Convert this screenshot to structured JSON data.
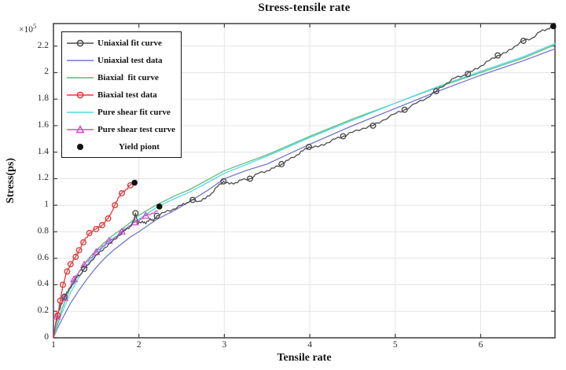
{
  "title": "Stress-tensile rate",
  "axes": {
    "x_label": "Tensile rate",
    "y_label": "Stress(ps)",
    "y_multiplier_base": "×10",
    "y_multiplier_exp": "5",
    "x_tick_labels": [
      "1",
      "2",
      "3",
      "4",
      "5",
      "6"
    ],
    "y_tick_labels": [
      "0",
      "0.2",
      "0.4",
      "0.6",
      "0.8",
      "1",
      "1.2",
      "1.4",
      "1.6",
      "1.8",
      "2",
      "2.2"
    ]
  },
  "legend": {
    "entries": [
      {
        "label": "Uniaxial fit curve",
        "color": "#4d4d4d",
        "marker": "circle",
        "line": true,
        "indent": false
      },
      {
        "label": "Uniaxial test data",
        "color": "#7577cf",
        "marker": "none",
        "line": true,
        "indent": false
      },
      {
        "label": "Biaxial  fit curve",
        "color": "#58bd7d",
        "marker": "none",
        "line": true,
        "indent": false
      },
      {
        "label": "Biaxial test data",
        "color": "#e23c3c",
        "marker": "circle",
        "line": true,
        "indent": false
      },
      {
        "label": "Pure shear fit curve",
        "color": "#55d6e6",
        "marker": "none",
        "line": true,
        "indent": false
      },
      {
        "label": "Pure shear test curve",
        "color": "#cc4ecf",
        "marker": "triangle",
        "line": true,
        "indent": false
      },
      {
        "label": "Yield piont",
        "color": "#111111",
        "marker": "dot",
        "line": false,
        "indent": true
      }
    ]
  },
  "chart_data": {
    "type": "line",
    "title": "Stress-tensile rate",
    "xlabel": "Tensile rate",
    "ylabel": "Stress(ps)",
    "y_unit_multiplier": "1e5",
    "xlim": [
      1,
      6.87
    ],
    "ylim": [
      0,
      2.37
    ],
    "grid": true,
    "legend_position": "top-left",
    "series": [
      {
        "name": "Uniaxial test data",
        "color": "#7577cf",
        "style": "smooth",
        "marker": "none",
        "points": [
          [
            1,
            0
          ],
          [
            1.05,
            0.075
          ],
          [
            1.1,
            0.14
          ],
          [
            1.2,
            0.26
          ],
          [
            1.3,
            0.36
          ],
          [
            1.4,
            0.45
          ],
          [
            1.5,
            0.53
          ],
          [
            1.6,
            0.6
          ],
          [
            1.7,
            0.66
          ],
          [
            1.8,
            0.71
          ],
          [
            1.9,
            0.76
          ],
          [
            2.0,
            0.8
          ],
          [
            2.2,
            0.89
          ],
          [
            2.4,
            0.955
          ],
          [
            2.6,
            1.03
          ],
          [
            2.8,
            1.11
          ],
          [
            3.0,
            1.2
          ],
          [
            3.25,
            1.26
          ],
          [
            3.5,
            1.31
          ],
          [
            3.75,
            1.385
          ],
          [
            4.0,
            1.46
          ],
          [
            4.5,
            1.6
          ],
          [
            5.0,
            1.73
          ],
          [
            5.5,
            1.86
          ],
          [
            6.0,
            1.98
          ],
          [
            6.5,
            2.09
          ],
          [
            6.87,
            2.18
          ]
        ],
        "markers": []
      },
      {
        "name": "Biaxial fit curve",
        "color": "#58bd7d",
        "style": "smooth",
        "marker": "none",
        "points": [
          [
            1,
            0
          ],
          [
            1.05,
            0.12
          ],
          [
            1.1,
            0.22
          ],
          [
            1.2,
            0.38
          ],
          [
            1.3,
            0.5
          ],
          [
            1.4,
            0.59
          ],
          [
            1.5,
            0.66
          ],
          [
            1.6,
            0.72
          ],
          [
            1.7,
            0.775
          ],
          [
            1.8,
            0.82
          ],
          [
            1.9,
            0.87
          ],
          [
            2.0,
            0.925
          ],
          [
            2.2,
            1.0
          ],
          [
            2.4,
            1.065
          ],
          [
            2.6,
            1.12
          ],
          [
            2.8,
            1.19
          ],
          [
            3.0,
            1.26
          ],
          [
            3.25,
            1.32
          ],
          [
            3.5,
            1.38
          ],
          [
            3.75,
            1.45
          ],
          [
            4.0,
            1.52
          ],
          [
            4.5,
            1.65
          ],
          [
            5.0,
            1.77
          ],
          [
            5.5,
            1.89
          ],
          [
            6.0,
            2.0
          ],
          [
            6.5,
            2.11
          ],
          [
            6.87,
            2.21
          ]
        ],
        "markers": []
      },
      {
        "name": "Pure shear fit curve",
        "color": "#55d6e6",
        "style": "smooth",
        "marker": "none",
        "points": [
          [
            1,
            0
          ],
          [
            1.05,
            0.1
          ],
          [
            1.1,
            0.19
          ],
          [
            1.2,
            0.34
          ],
          [
            1.3,
            0.46
          ],
          [
            1.4,
            0.555
          ],
          [
            1.5,
            0.63
          ],
          [
            1.6,
            0.695
          ],
          [
            1.7,
            0.75
          ],
          [
            1.8,
            0.8
          ],
          [
            1.9,
            0.85
          ],
          [
            2.0,
            0.895
          ],
          [
            2.2,
            0.98
          ],
          [
            2.4,
            1.045
          ],
          [
            2.6,
            1.1
          ],
          [
            2.8,
            1.17
          ],
          [
            3.0,
            1.24
          ],
          [
            3.25,
            1.305
          ],
          [
            3.5,
            1.37
          ],
          [
            3.75,
            1.44
          ],
          [
            4.0,
            1.51
          ],
          [
            4.5,
            1.64
          ],
          [
            5.0,
            1.77
          ],
          [
            5.5,
            1.895
          ],
          [
            6.0,
            2.01
          ],
          [
            6.5,
            2.12
          ],
          [
            6.87,
            2.22
          ]
        ],
        "markers": []
      },
      {
        "name": "Pure shear test curve",
        "color": "#cc4ecf",
        "style": "noisy",
        "marker": "triangle",
        "points": [
          [
            1,
            0
          ],
          [
            1.04,
            0.16
          ],
          [
            1.09,
            0.25
          ],
          [
            1.13,
            0.3
          ],
          [
            1.18,
            0.37
          ],
          [
            1.24,
            0.44
          ],
          [
            1.3,
            0.5
          ],
          [
            1.36,
            0.55
          ],
          [
            1.43,
            0.6
          ],
          [
            1.5,
            0.645
          ],
          [
            1.57,
            0.69
          ],
          [
            1.65,
            0.73
          ],
          [
            1.72,
            0.755
          ],
          [
            1.8,
            0.8
          ],
          [
            1.88,
            0.84
          ],
          [
            1.95,
            0.87
          ],
          [
            2.02,
            0.895
          ],
          [
            2.08,
            0.92
          ],
          [
            2.15,
            0.94
          ],
          [
            2.22,
            0.955
          ]
        ],
        "markers": [
          [
            1.04,
            0.16
          ],
          [
            1.13,
            0.3
          ],
          [
            1.24,
            0.44
          ],
          [
            1.36,
            0.55
          ],
          [
            1.5,
            0.645
          ],
          [
            1.65,
            0.73
          ],
          [
            1.8,
            0.8
          ],
          [
            1.95,
            0.87
          ],
          [
            2.08,
            0.92
          ]
        ]
      },
      {
        "name": "Uniaxial fit curve",
        "color": "#4d4d4d",
        "style": "noisy",
        "marker": "circle",
        "points": [
          [
            1,
            0
          ],
          [
            1.03,
            0.12
          ],
          [
            1.06,
            0.2
          ],
          [
            1.1,
            0.27
          ],
          [
            1.13,
            0.31
          ],
          [
            1.17,
            0.35
          ],
          [
            1.22,
            0.4
          ],
          [
            1.28,
            0.46
          ],
          [
            1.32,
            0.48
          ],
          [
            1.36,
            0.52
          ],
          [
            1.44,
            0.58
          ],
          [
            1.52,
            0.63
          ],
          [
            1.6,
            0.68
          ],
          [
            1.68,
            0.72
          ],
          [
            1.76,
            0.77
          ],
          [
            1.84,
            0.81
          ],
          [
            1.9,
            0.84
          ],
          [
            1.94,
            0.88
          ],
          [
            1.96,
            0.94
          ],
          [
            1.99,
            0.86
          ],
          [
            2.04,
            0.88
          ],
          [
            2.08,
            0.86
          ],
          [
            2.13,
            0.9
          ],
          [
            2.17,
            0.88
          ],
          [
            2.21,
            0.92
          ],
          [
            2.3,
            0.945
          ],
          [
            2.4,
            0.97
          ],
          [
            2.5,
            1.0
          ],
          [
            2.56,
            1.02
          ],
          [
            2.63,
            1.04
          ],
          [
            2.7,
            1.03
          ],
          [
            2.78,
            1.05
          ],
          [
            2.85,
            1.09
          ],
          [
            2.92,
            1.14
          ],
          [
            2.99,
            1.18
          ],
          [
            3.06,
            1.16
          ],
          [
            3.13,
            1.17
          ],
          [
            3.2,
            1.19
          ],
          [
            3.3,
            1.2
          ],
          [
            3.4,
            1.24
          ],
          [
            3.5,
            1.26
          ],
          [
            3.58,
            1.28
          ],
          [
            3.67,
            1.31
          ],
          [
            3.75,
            1.34
          ],
          [
            3.85,
            1.38
          ],
          [
            3.92,
            1.41
          ],
          [
            3.99,
            1.44
          ],
          [
            4.1,
            1.44
          ],
          [
            4.2,
            1.47
          ],
          [
            4.3,
            1.5
          ],
          [
            4.39,
            1.52
          ],
          [
            4.5,
            1.55
          ],
          [
            4.62,
            1.58
          ],
          [
            4.74,
            1.6
          ],
          [
            4.85,
            1.64
          ],
          [
            5.0,
            1.69
          ],
          [
            5.11,
            1.72
          ],
          [
            5.25,
            1.77
          ],
          [
            5.37,
            1.81
          ],
          [
            5.48,
            1.86
          ],
          [
            5.6,
            1.92
          ],
          [
            5.7,
            1.96
          ],
          [
            5.8,
            1.98
          ],
          [
            5.9,
            2.01
          ],
          [
            6.0,
            2.05
          ],
          [
            6.1,
            2.09
          ],
          [
            6.2,
            2.13
          ],
          [
            6.3,
            2.15
          ],
          [
            6.4,
            2.2
          ],
          [
            6.5,
            2.24
          ],
          [
            6.6,
            2.26
          ],
          [
            6.7,
            2.31
          ],
          [
            6.78,
            2.33
          ],
          [
            6.85,
            2.35
          ]
        ],
        "markers": [
          [
            1.13,
            0.31
          ],
          [
            1.36,
            0.52
          ],
          [
            1.96,
            0.94
          ],
          [
            2.21,
            0.92
          ],
          [
            2.63,
            1.04
          ],
          [
            2.99,
            1.18
          ],
          [
            3.3,
            1.2
          ],
          [
            3.67,
            1.31
          ],
          [
            3.99,
            1.44
          ],
          [
            4.39,
            1.52
          ],
          [
            4.74,
            1.6
          ],
          [
            5.11,
            1.72
          ],
          [
            5.48,
            1.86
          ],
          [
            5.85,
            1.99
          ],
          [
            6.2,
            2.13
          ],
          [
            6.5,
            2.24
          ]
        ]
      },
      {
        "name": "Biaxial test data",
        "color": "#e23c3c",
        "style": "noisy",
        "marker": "circle",
        "points": [
          [
            1,
            0
          ],
          [
            1.02,
            0.08
          ],
          [
            1.05,
            0.17
          ],
          [
            1.08,
            0.28
          ],
          [
            1.11,
            0.4
          ],
          [
            1.16,
            0.5
          ],
          [
            1.2,
            0.555
          ],
          [
            1.26,
            0.61
          ],
          [
            1.3,
            0.66
          ],
          [
            1.35,
            0.72
          ],
          [
            1.42,
            0.79
          ],
          [
            1.5,
            0.82
          ],
          [
            1.57,
            0.85
          ],
          [
            1.64,
            0.9
          ],
          [
            1.68,
            0.95
          ],
          [
            1.72,
            1.0
          ],
          [
            1.76,
            1.06
          ],
          [
            1.8,
            1.09
          ],
          [
            1.85,
            1.12
          ],
          [
            1.9,
            1.15
          ],
          [
            1.95,
            1.17
          ]
        ],
        "markers": [
          [
            1.05,
            0.17
          ],
          [
            1.08,
            0.28
          ],
          [
            1.11,
            0.4
          ],
          [
            1.16,
            0.5
          ],
          [
            1.2,
            0.555
          ],
          [
            1.26,
            0.61
          ],
          [
            1.3,
            0.66
          ],
          [
            1.35,
            0.72
          ],
          [
            1.42,
            0.79
          ],
          [
            1.5,
            0.82
          ],
          [
            1.57,
            0.85
          ],
          [
            1.64,
            0.9
          ],
          [
            1.72,
            1.0
          ],
          [
            1.8,
            1.09
          ],
          [
            1.9,
            1.15
          ]
        ]
      }
    ],
    "yield_points": {
      "name": "Yield piont",
      "color": "#111111",
      "points": [
        [
          1.95,
          1.17
        ],
        [
          2.24,
          0.99
        ],
        [
          6.85,
          2.35
        ]
      ]
    }
  }
}
